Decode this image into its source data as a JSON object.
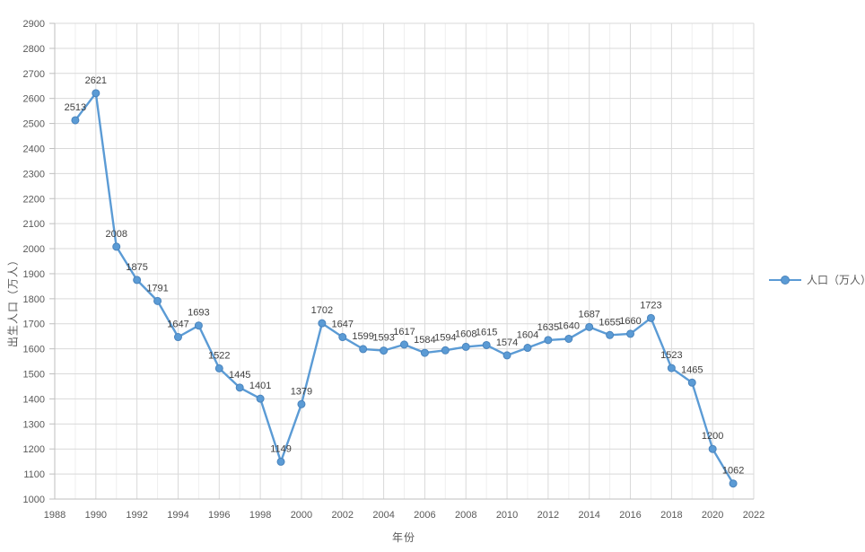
{
  "chart_data": {
    "type": "line",
    "title": "",
    "xlabel": "年份",
    "ylabel": "出生人口（万人）",
    "legend_label": "人口（万人）",
    "legend_position": "right",
    "x": [
      1989,
      1990,
      1991,
      1992,
      1993,
      1994,
      1995,
      1996,
      1997,
      1998,
      1999,
      2000,
      2001,
      2002,
      2003,
      2004,
      2005,
      2006,
      2007,
      2008,
      2009,
      2010,
      2011,
      2012,
      2013,
      2014,
      2015,
      2016,
      2017,
      2018,
      2019,
      2020,
      2021
    ],
    "series": [
      {
        "name": "人口（万人）",
        "values": [
          2513,
          2621,
          2008,
          1875,
          1791,
          1647,
          1693,
          1522,
          1445,
          1401,
          1149,
          1379,
          1702,
          1647,
          1599,
          1593,
          1617,
          1584,
          1594,
          1608,
          1615,
          1574,
          1604,
          1635,
          1640,
          1687,
          1655,
          1660,
          1723,
          1523,
          1465,
          1200,
          1062
        ]
      }
    ],
    "data_labels_visible": true,
    "xlim": [
      1988,
      2022
    ],
    "ylim": [
      1000,
      2900
    ],
    "x_tick_step": 2,
    "y_tick_step": 100,
    "x_ticks": [
      1988,
      1990,
      1992,
      1994,
      1996,
      1998,
      2000,
      2002,
      2004,
      2006,
      2008,
      2010,
      2012,
      2014,
      2016,
      2018,
      2020,
      2022
    ],
    "y_ticks": [
      1000,
      1100,
      1200,
      1300,
      1400,
      1500,
      1600,
      1700,
      1800,
      1900,
      2000,
      2100,
      2200,
      2300,
      2400,
      2500,
      2600,
      2700,
      2800,
      2900
    ],
    "grid": true,
    "colors": {
      "background": "#ffffff",
      "line": "#5B9BD5",
      "marker_fill": "#5B9BD5",
      "marker_edge": "#4A84BD",
      "grid_major": "#D9D9D9",
      "grid_minor": "#EFEFEF",
      "axis_line": "#BFBFBF",
      "tick_label": "#595959",
      "data_label": "#404040",
      "legend_text": "#595959"
    }
  }
}
